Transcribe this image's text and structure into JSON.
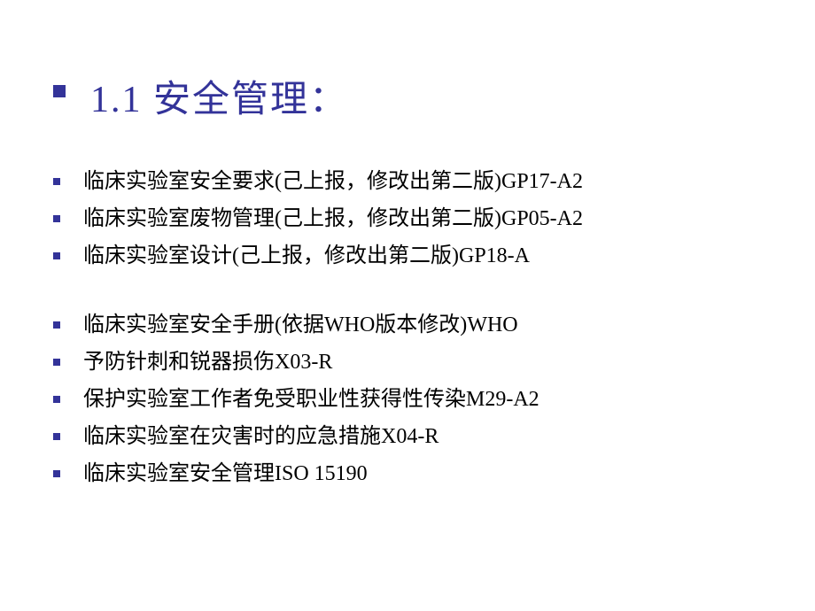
{
  "title": "1.1  安全管理：",
  "colors": {
    "accent": "#333399",
    "text": "#000000",
    "background": "#ffffff"
  },
  "typography": {
    "title_fontsize": 42,
    "body_fontsize": 24,
    "font_family": "SimSun"
  },
  "groups": [
    {
      "items": [
        {
          "label": "临床实验室安全要求(己上报，修改出第二版) ",
          "code": "GP17-A2"
        },
        {
          "label": "临床实验室废物管理(己上报，修改出第二版) ",
          "code": "GP05-A2"
        },
        {
          "label": "临床实验室设计(己上报，修改出第二版)        ",
          "code": "GP18-A"
        }
      ]
    },
    {
      "items": [
        {
          "label": "临床实验室安全手册(依据WHO版本修改)       ",
          "code": "WHO"
        },
        {
          "label": "予防针刺和锐器损伤                                        ",
          "code": "X03-R"
        },
        {
          "label": "保护实验室工作者免受职业性获得性传染        ",
          "code": "M29-A2"
        },
        {
          "label": "临床实验室在灾害时的应急措施                       ",
          "code": "X04-R"
        },
        {
          "label": "临床实验室安全管理                                        ",
          "code": "ISO 15190"
        }
      ]
    }
  ]
}
